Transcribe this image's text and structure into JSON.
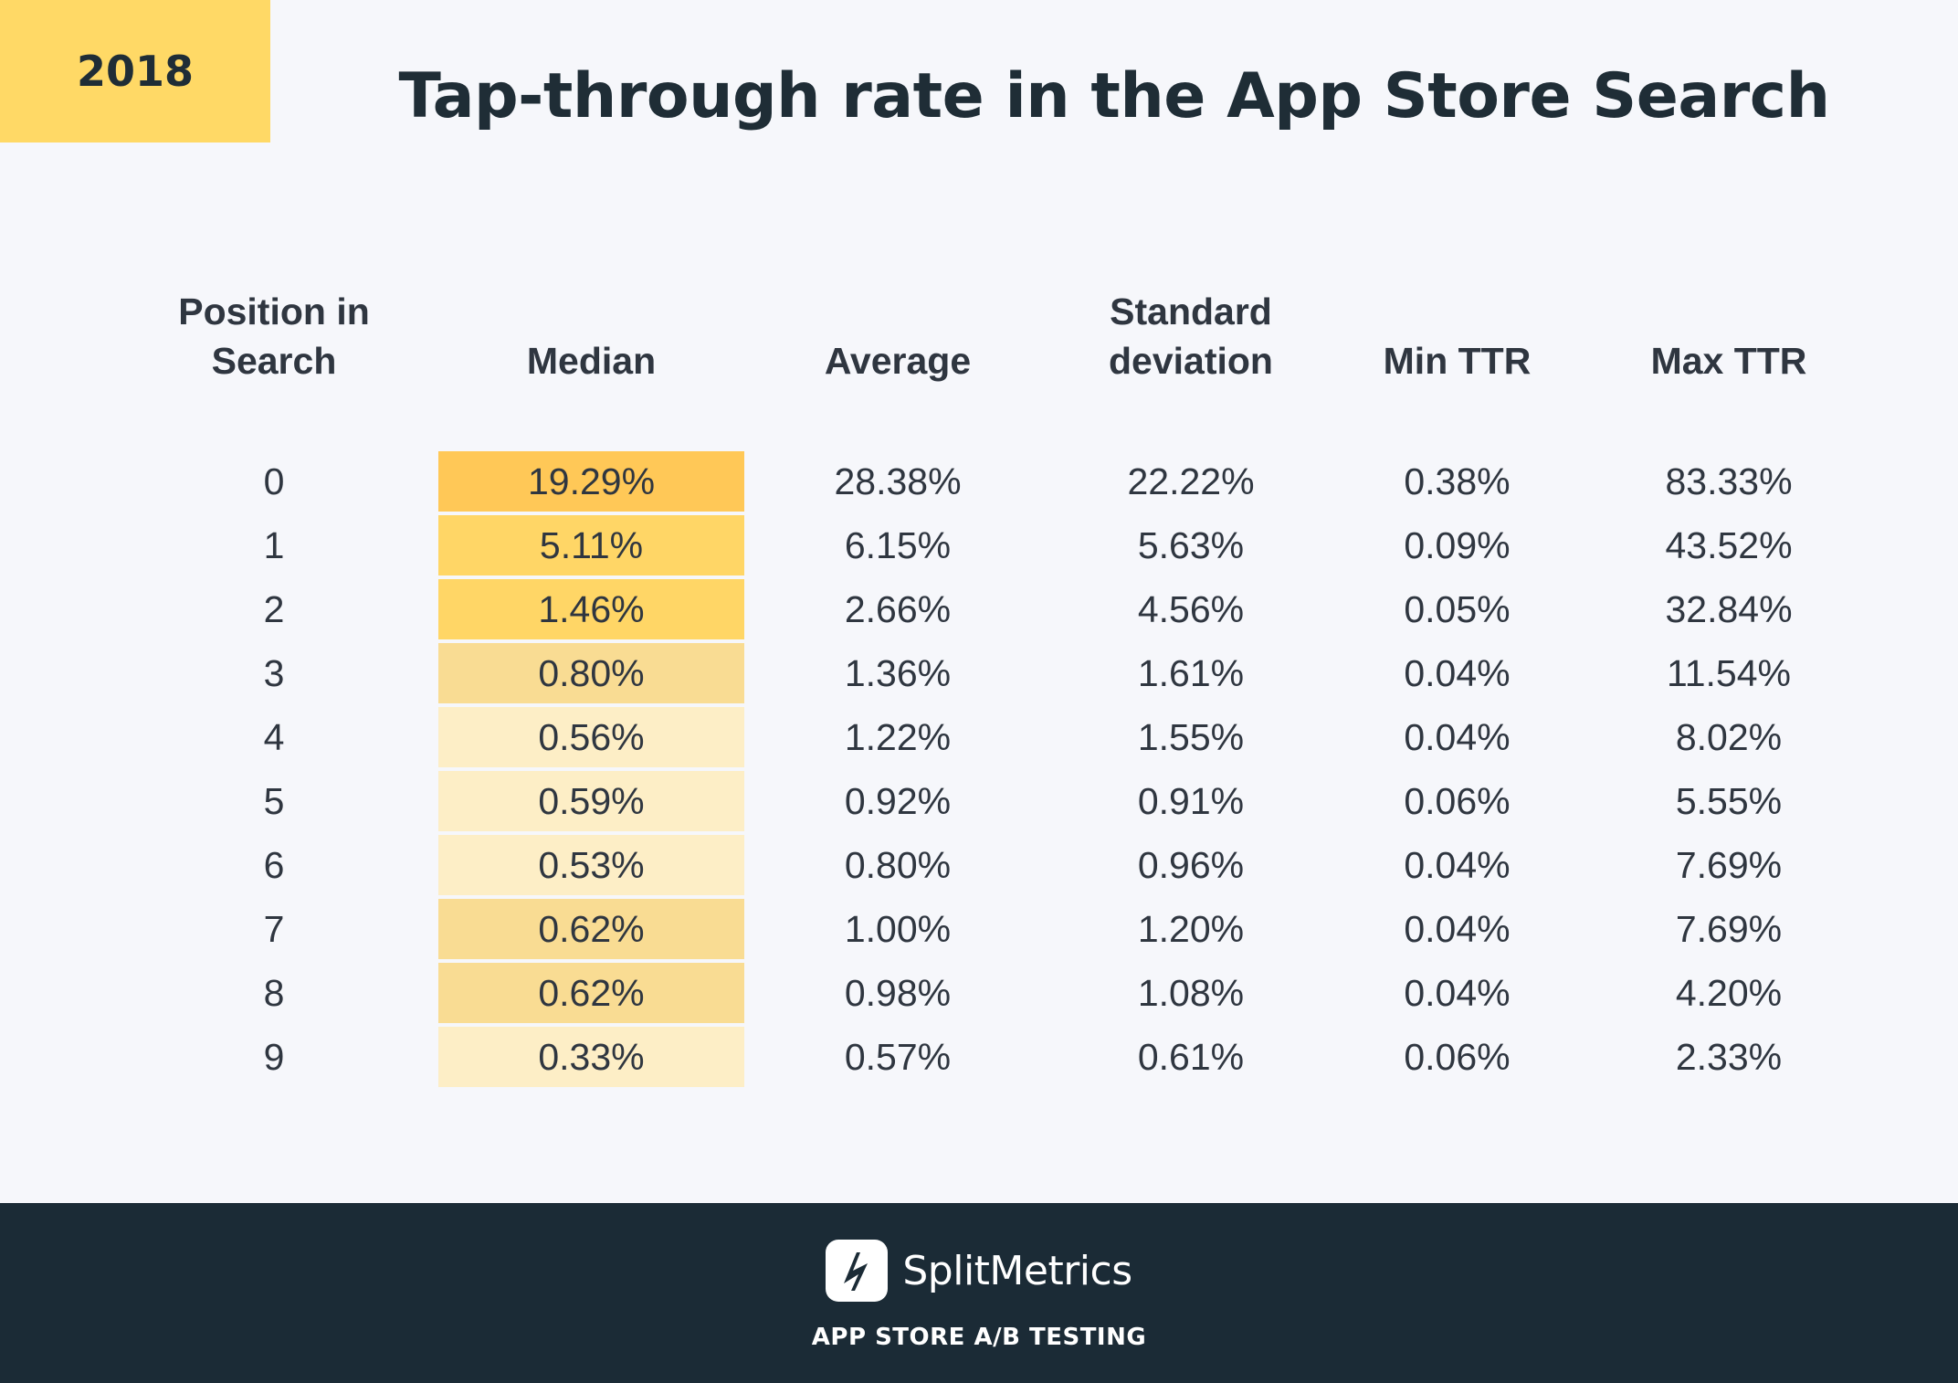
{
  "badge": {
    "year": "2018"
  },
  "title": "Tap-through rate in the App Store Search",
  "table": {
    "headers": {
      "position_line1": "Position in",
      "position_line2": "Search",
      "median": "Median",
      "average": "Average",
      "sd_line1": "Standard",
      "sd_line2": "deviation",
      "min": "Min TTR",
      "max": "Max TTR"
    },
    "rows": [
      {
        "position": "0",
        "median": "19.29%",
        "median_color": "#ffc857",
        "average": "28.38%",
        "sd": "22.22%",
        "min": "0.38%",
        "max": "83.33%"
      },
      {
        "position": "1",
        "median": "5.11%",
        "median_color": "#ffd666",
        "average": "6.15%",
        "sd": "5.63%",
        "min": "0.09%",
        "max": "43.52%"
      },
      {
        "position": "2",
        "median": "1.46%",
        "median_color": "#ffd666",
        "average": "2.66%",
        "sd": "4.56%",
        "min": "0.05%",
        "max": "32.84%"
      },
      {
        "position": "3",
        "median": "0.80%",
        "median_color": "#f9dc93",
        "average": "1.36%",
        "sd": "1.61%",
        "min": "0.04%",
        "max": "11.54%"
      },
      {
        "position": "4",
        "median": "0.56%",
        "median_color": "#fdeec6",
        "average": "1.22%",
        "sd": "1.55%",
        "min": "0.04%",
        "max": "8.02%"
      },
      {
        "position": "5",
        "median": "0.59%",
        "median_color": "#fdeec6",
        "average": "0.92%",
        "sd": "0.91%",
        "min": "0.06%",
        "max": "5.55%"
      },
      {
        "position": "6",
        "median": "0.53%",
        "median_color": "#fdeec6",
        "average": "0.80%",
        "sd": "0.96%",
        "min": "0.04%",
        "max": "7.69%"
      },
      {
        "position": "7",
        "median": "0.62%",
        "median_color": "#f9dc93",
        "average": "1.00%",
        "sd": "1.20%",
        "min": "0.04%",
        "max": "7.69%"
      },
      {
        "position": "8",
        "median": "0.62%",
        "median_color": "#f9dc93",
        "average": "0.98%",
        "sd": "1.08%",
        "min": "0.04%",
        "max": "4.20%"
      },
      {
        "position": "9",
        "median": "0.33%",
        "median_color": "#fdeec6",
        "average": "0.57%",
        "sd": "0.61%",
        "min": "0.06%",
        "max": "2.33%"
      }
    ]
  },
  "chart_data": {
    "type": "table",
    "title": "Tap-through rate in the App Store Search",
    "columns": [
      "Position in Search",
      "Median",
      "Average",
      "Standard deviation",
      "Min TTR",
      "Max TTR"
    ],
    "rows": [
      [
        0,
        19.29,
        28.38,
        22.22,
        0.38,
        83.33
      ],
      [
        1,
        5.11,
        6.15,
        5.63,
        0.09,
        43.52
      ],
      [
        2,
        1.46,
        2.66,
        4.56,
        0.05,
        32.84
      ],
      [
        3,
        0.8,
        1.36,
        1.61,
        0.04,
        11.54
      ],
      [
        4,
        0.56,
        1.22,
        1.55,
        0.04,
        8.02
      ],
      [
        5,
        0.59,
        0.92,
        0.91,
        0.06,
        5.55
      ],
      [
        6,
        0.53,
        0.8,
        0.96,
        0.04,
        7.69
      ],
      [
        7,
        0.62,
        1.0,
        1.2,
        0.04,
        7.69
      ],
      [
        8,
        0.62,
        0.98,
        1.08,
        0.04,
        4.2
      ],
      [
        9,
        0.33,
        0.57,
        0.61,
        0.06,
        2.33
      ]
    ]
  },
  "footer": {
    "brand": "SplitMetrics",
    "tagline": "APP STORE A/B TESTING",
    "logo_icon": "splitmetrics-logo-icon"
  },
  "colors": {
    "badge_bg": "#ffd966",
    "footer_bg": "#1b2b36",
    "page_bg": "#f6f7fb"
  }
}
